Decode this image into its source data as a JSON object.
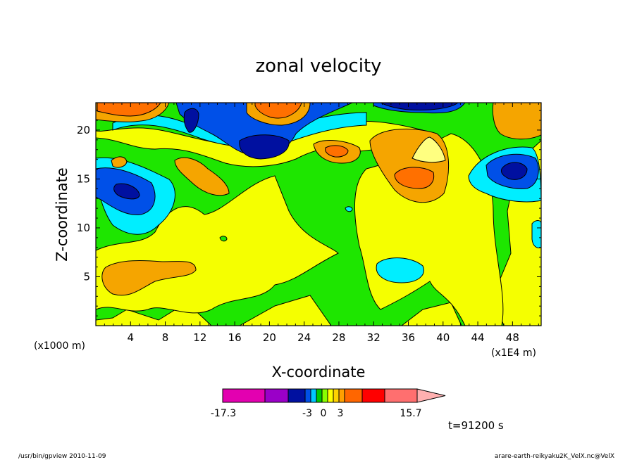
{
  "chart_data": {
    "type": "contour",
    "title": "zonal velocity",
    "xlabel": "X-coordinate",
    "ylabel": "Z-coordinate",
    "x_unit_left": "(x1000 m)",
    "x_unit_right": "(x1E4 m)",
    "x_ticks": [
      "4",
      "8",
      "12",
      "16",
      "20",
      "24",
      "28",
      "32",
      "36",
      "40",
      "44",
      "48"
    ],
    "y_ticks": [
      "5",
      "10",
      "15",
      "20"
    ],
    "xlim": [
      0,
      51.3
    ],
    "ylim": [
      0,
      22.8
    ],
    "colorbar": {
      "colors": [
        "#e300b0",
        "#9a00c8",
        "#0010a0",
        "#0050e8",
        "#00c8ff",
        "#00c800",
        "#88ff00",
        "#ffff00",
        "#ffd200",
        "#ffa000",
        "#ff6600",
        "#ff0000",
        "#ff6f6f",
        "#ffb0b0"
      ],
      "labels": [
        "-17.3",
        "-3",
        "0",
        "3",
        "15.7"
      ]
    },
    "palette": {
      "yellow": "#f5ff00",
      "green": "#1ee600",
      "orange": "#f5a500",
      "dark_orange": "#ff7000",
      "light_yellow": "#ffff80",
      "cyan": "#00eeff",
      "blue": "#0050e8",
      "dark_blue": "#0010a0"
    }
  },
  "annotations": {
    "time": "t=91200 s",
    "footer_left": "/usr/bin/gpview  2010-11-09",
    "footer_right": "arare-earth-reikyaku2K_VelX.nc@VelX"
  }
}
